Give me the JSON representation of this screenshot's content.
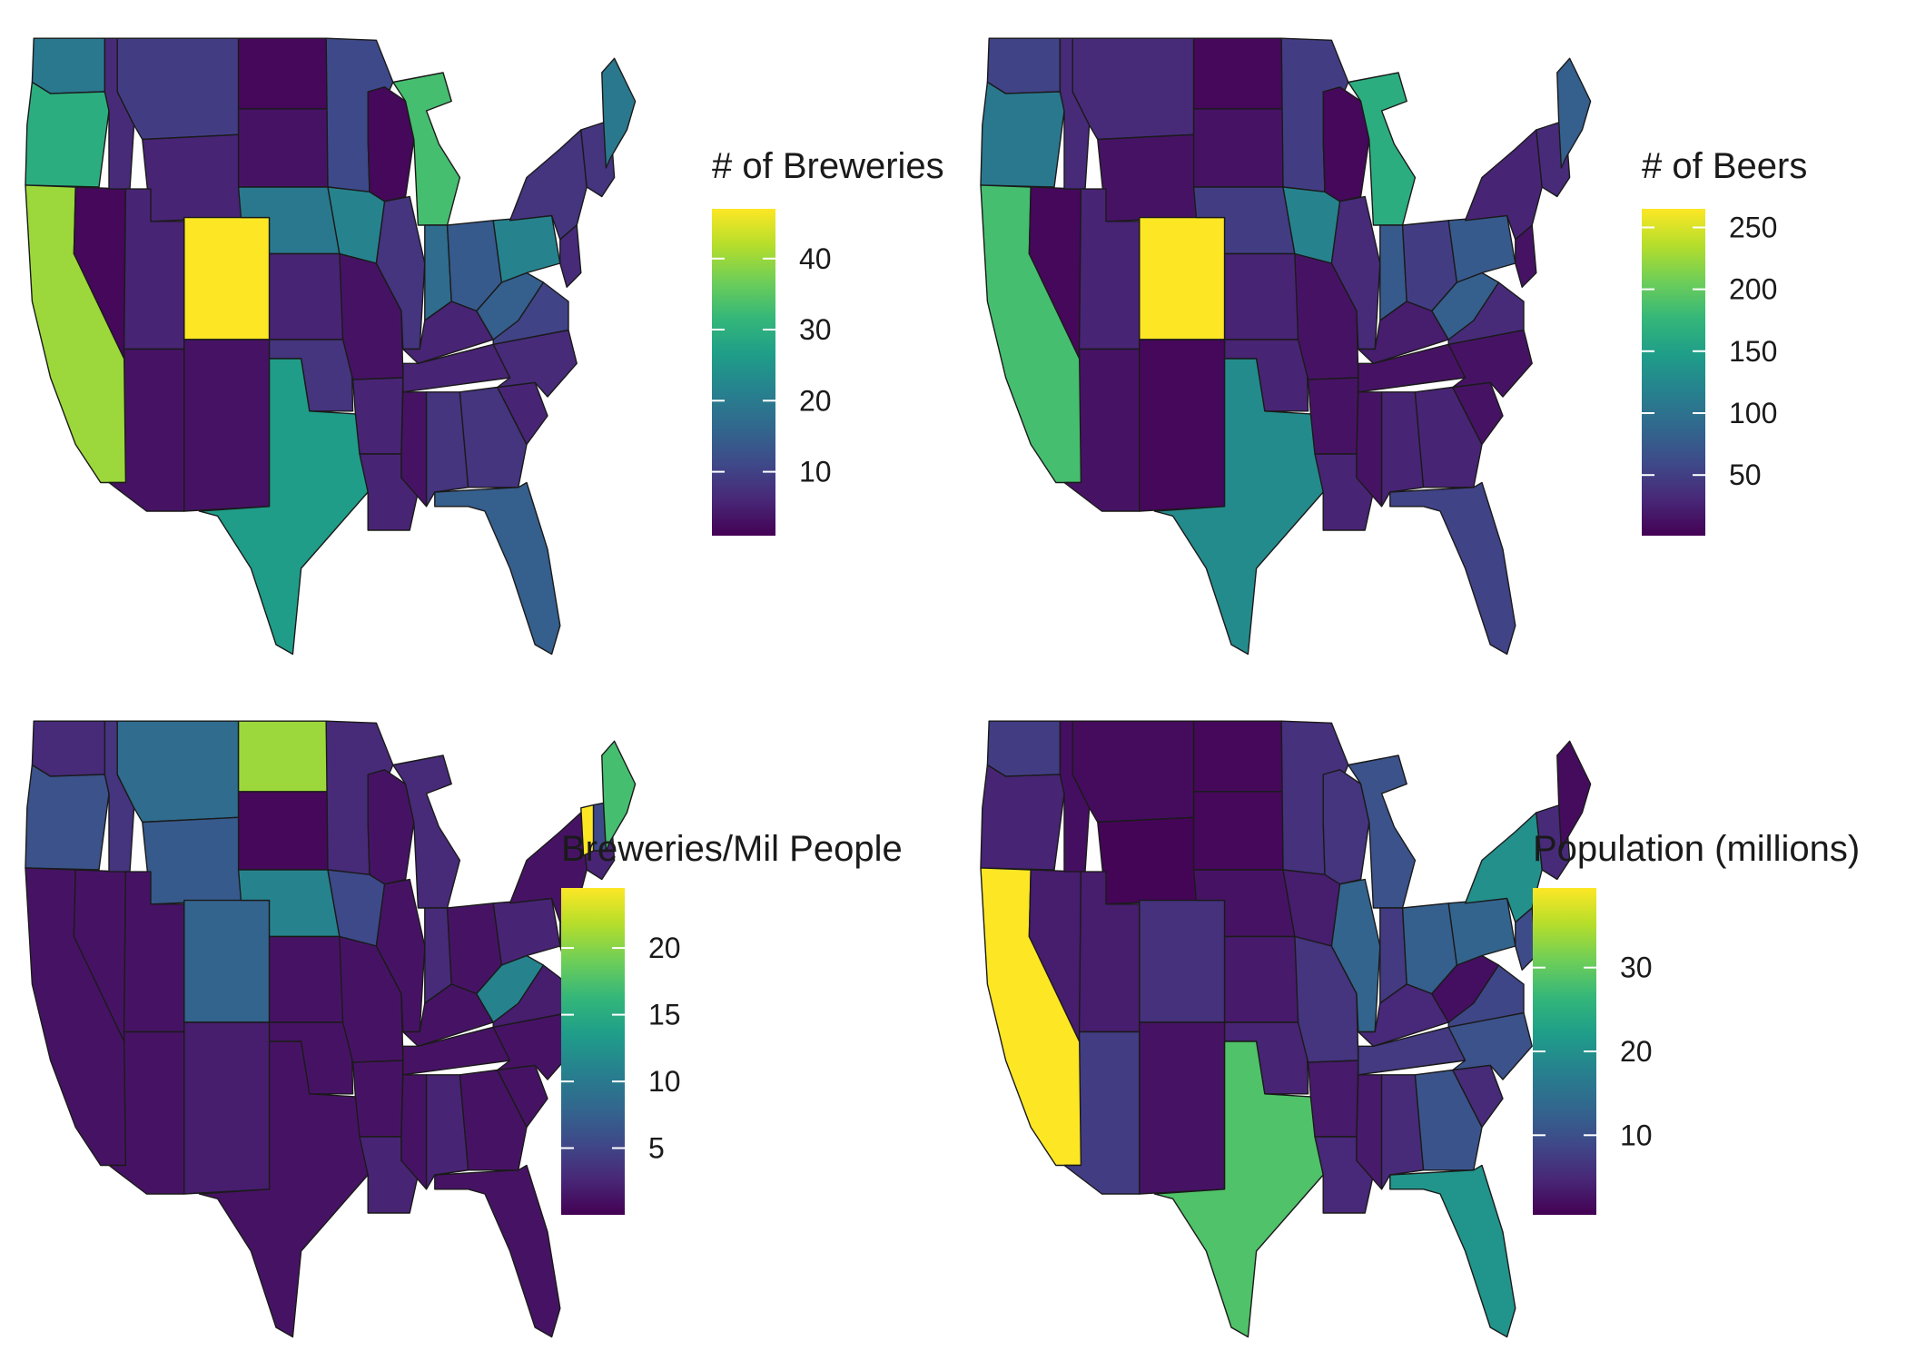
{
  "colors": {
    "viridis": [
      "#440154",
      "#482878",
      "#3e4a89",
      "#31688e",
      "#26828e",
      "#1f9e89",
      "#35b779",
      "#6ece58",
      "#b5de2b",
      "#fde725"
    ],
    "state_border": "#1a1a1a",
    "tick_mark": "#ffffff"
  },
  "panels": [
    {
      "id": "breweries",
      "legend": {
        "title": "# of Breweries",
        "min": 1,
        "max": 47,
        "ticks": [
          10,
          20,
          30,
          40
        ]
      },
      "states": {
        "WA": 0.4,
        "OR": 0.62,
        "CA": 0.85,
        "NV": 0.02,
        "ID": 0.12,
        "MT": 0.18,
        "WY": 0.1,
        "UT": 0.1,
        "CO": 1.0,
        "AZ": 0.05,
        "NM": 0.05,
        "ND": 0.02,
        "SD": 0.05,
        "NE": 0.4,
        "KS": 0.1,
        "OK": 0.15,
        "TX": 0.55,
        "MN": 0.22,
        "IA": 0.45,
        "MO": 0.05,
        "AR": 0.1,
        "LA": 0.1,
        "WI": 0.02,
        "IL": 0.15,
        "MI": 0.7,
        "IN": 0.35,
        "OH": 0.28,
        "KY": 0.1,
        "TN": 0.1,
        "MS": 0.05,
        "AL": 0.15,
        "GA": 0.15,
        "FL": 0.3,
        "SC": 0.1,
        "NC": 0.12,
        "VA": 0.2,
        "WV": 0.3,
        "PA": 0.45,
        "NY": 0.15,
        "NJ": 0.12,
        "NE_ENG": 0.15,
        "ME": 0.4
      }
    },
    {
      "id": "beers",
      "legend": {
        "title": "# of Beers",
        "min": 1,
        "max": 265,
        "ticks": [
          50,
          100,
          150,
          200,
          250
        ]
      },
      "states": {
        "WA": 0.2,
        "OR": 0.4,
        "CA": 0.7,
        "NV": 0.02,
        "ID": 0.12,
        "MT": 0.12,
        "WY": 0.05,
        "UT": 0.1,
        "CO": 1.0,
        "AZ": 0.05,
        "NM": 0.02,
        "ND": 0.02,
        "SD": 0.05,
        "NE": 0.18,
        "KS": 0.1,
        "OK": 0.1,
        "TX": 0.48,
        "MN": 0.18,
        "IA": 0.45,
        "MO": 0.05,
        "AR": 0.05,
        "LA": 0.1,
        "WI": 0.02,
        "IL": 0.12,
        "MI": 0.62,
        "IN": 0.28,
        "OH": 0.18,
        "KY": 0.08,
        "TN": 0.05,
        "MS": 0.05,
        "AL": 0.1,
        "GA": 0.1,
        "FL": 0.2,
        "SC": 0.05,
        "NC": 0.05,
        "VA": 0.12,
        "WV": 0.3,
        "PA": 0.28,
        "NY": 0.1,
        "NJ": 0.05,
        "NE_ENG": 0.12,
        "ME": 0.3
      }
    },
    {
      "id": "per_million",
      "legend": {
        "title": "Breweries/Mil People",
        "min": 0,
        "max": 24.5,
        "ticks": [
          5,
          10,
          15,
          20
        ]
      },
      "states": {
        "WA": 0.12,
        "OR": 0.25,
        "CA": 0.05,
        "NV": 0.05,
        "ID": 0.15,
        "MT": 0.35,
        "WY": 0.28,
        "UT": 0.05,
        "CO": 0.32,
        "AZ": 0.05,
        "NM": 0.08,
        "ND": 0.85,
        "SD": 0.02,
        "NE": 0.45,
        "KS": 0.05,
        "OK": 0.05,
        "TX": 0.05,
        "MN": 0.12,
        "IA": 0.22,
        "MO": 0.05,
        "AR": 0.05,
        "LA": 0.1,
        "WI": 0.05,
        "IL": 0.05,
        "MI": 0.12,
        "IN": 0.12,
        "OH": 0.05,
        "KY": 0.05,
        "TN": 0.05,
        "MS": 0.05,
        "AL": 0.1,
        "GA": 0.05,
        "FL": 0.05,
        "SC": 0.05,
        "NC": 0.05,
        "VA": 0.08,
        "WV": 0.45,
        "PA": 0.1,
        "NY": 0.05,
        "NJ": 0.05,
        "NE_ENG": 0.1,
        "VT": 1.0,
        "NH": 0.22,
        "ME": 0.7
      }
    },
    {
      "id": "population",
      "legend": {
        "title": "Population (millions)",
        "min": 0.5,
        "max": 39.5,
        "ticks": [
          10,
          20,
          30
        ]
      },
      "states": {
        "WA": 0.18,
        "OR": 0.1,
        "CA": 1.0,
        "NV": 0.08,
        "ID": 0.04,
        "MT": 0.03,
        "WY": 0.01,
        "UT": 0.08,
        "CO": 0.14,
        "AZ": 0.18,
        "NM": 0.05,
        "ND": 0.02,
        "SD": 0.02,
        "NE": 0.05,
        "KS": 0.07,
        "OK": 0.1,
        "TX": 0.72,
        "MN": 0.14,
        "IA": 0.08,
        "MO": 0.15,
        "AR": 0.07,
        "LA": 0.11,
        "WI": 0.15,
        "IL": 0.32,
        "MI": 0.25,
        "IN": 0.17,
        "OH": 0.3,
        "KY": 0.11,
        "TN": 0.17,
        "MS": 0.07,
        "AL": 0.12,
        "GA": 0.26,
        "FL": 0.52,
        "SC": 0.12,
        "NC": 0.25,
        "VA": 0.21,
        "WV": 0.04,
        "PA": 0.32,
        "NY": 0.5,
        "NJ": 0.23,
        "NE_ENG": 0.12,
        "ME": 0.03
      }
    }
  ]
}
